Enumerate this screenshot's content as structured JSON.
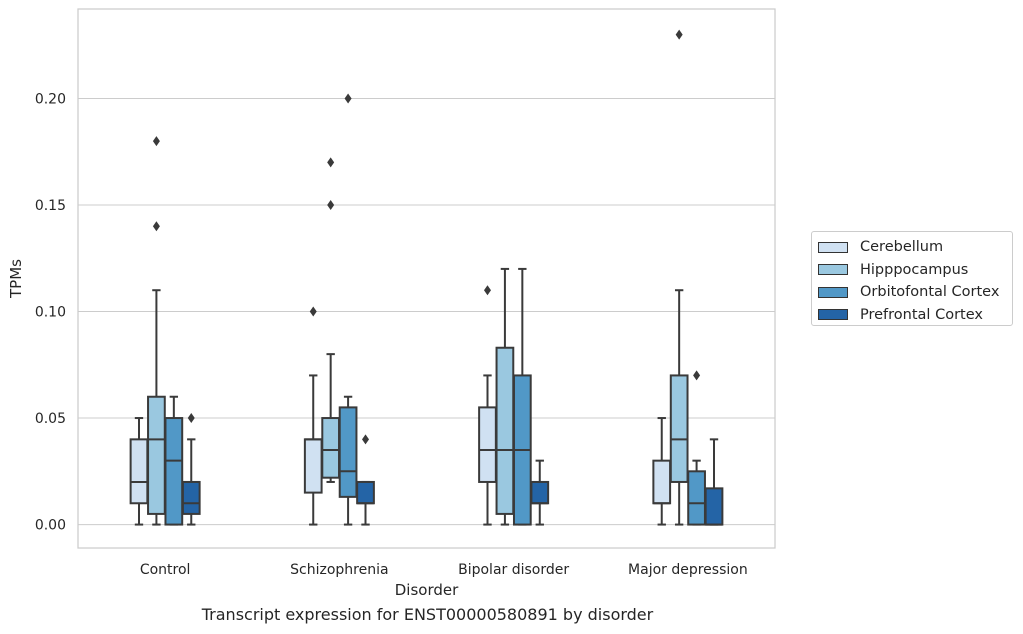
{
  "chart_data": {
    "type": "box",
    "xlabel": "Disorder",
    "ylabel": "TPMs",
    "caption": "Transcript expression for ENST00000580891 by disorder",
    "categories": [
      "Control",
      "Schizophrenia",
      "Bipolar disorder",
      "Major depression"
    ],
    "ylim": [
      -0.011,
      0.242
    ],
    "yticks": [
      0.0,
      0.05,
      0.1,
      0.15,
      0.2
    ],
    "ytick_labels": [
      "0.00",
      "0.05",
      "0.10",
      "0.15",
      "0.20"
    ],
    "grid": "horizontal",
    "legend_position": "right",
    "series": [
      {
        "name": "Cerebellum",
        "color": "#d0e1f2",
        "boxes": [
          {
            "whislo": 0.0,
            "q1": 0.01,
            "med": 0.02,
            "q3": 0.04,
            "whishi": 0.05,
            "fliers": []
          },
          {
            "whislo": 0.0,
            "q1": 0.015,
            "med": 0.04,
            "q3": 0.04,
            "whishi": 0.07,
            "fliers": [
              0.1
            ]
          },
          {
            "whislo": 0.0,
            "q1": 0.02,
            "med": 0.035,
            "q3": 0.055,
            "whishi": 0.07,
            "fliers": [
              0.11
            ]
          },
          {
            "whislo": 0.0,
            "q1": 0.01,
            "med": 0.01,
            "q3": 0.03,
            "whishi": 0.05,
            "fliers": []
          }
        ]
      },
      {
        "name": "Hipppocampus",
        "color": "#9ac8e0",
        "boxes": [
          {
            "whislo": 0.0,
            "q1": 0.005,
            "med": 0.04,
            "q3": 0.06,
            "whishi": 0.11,
            "fliers": [
              0.14,
              0.18
            ]
          },
          {
            "whislo": 0.02,
            "q1": 0.022,
            "med": 0.035,
            "q3": 0.05,
            "whishi": 0.08,
            "fliers": [
              0.15,
              0.17
            ]
          },
          {
            "whislo": 0.0,
            "q1": 0.005,
            "med": 0.035,
            "q3": 0.083,
            "whishi": 0.12,
            "fliers": []
          },
          {
            "whislo": 0.0,
            "q1": 0.02,
            "med": 0.04,
            "q3": 0.07,
            "whishi": 0.11,
            "fliers": [
              0.23
            ]
          }
        ]
      },
      {
        "name": "Orbitofontal Cortex",
        "color": "#5198c7",
        "boxes": [
          {
            "whislo": 0.0,
            "q1": 0.0,
            "med": 0.03,
            "q3": 0.05,
            "whishi": 0.06,
            "fliers": []
          },
          {
            "whislo": 0.0,
            "q1": 0.013,
            "med": 0.025,
            "q3": 0.055,
            "whishi": 0.06,
            "fliers": [
              0.2
            ]
          },
          {
            "whislo": 0.0,
            "q1": 0.0,
            "med": 0.035,
            "q3": 0.07,
            "whishi": 0.12,
            "fliers": []
          },
          {
            "whislo": 0.0,
            "q1": 0.0,
            "med": 0.01,
            "q3": 0.025,
            "whishi": 0.03,
            "fliers": [
              0.07
            ]
          }
        ]
      },
      {
        "name": "Prefrontal Cortex",
        "color": "#2464a6",
        "boxes": [
          {
            "whislo": 0.0,
            "q1": 0.005,
            "med": 0.01,
            "q3": 0.02,
            "whishi": 0.04,
            "fliers": [
              0.05
            ]
          },
          {
            "whislo": 0.0,
            "q1": 0.01,
            "med": 0.01,
            "q3": 0.02,
            "whishi": 0.02,
            "fliers": [
              0.04
            ]
          },
          {
            "whislo": 0.0,
            "q1": 0.01,
            "med": 0.01,
            "q3": 0.02,
            "whishi": 0.03,
            "fliers": []
          },
          {
            "whislo": 0.0,
            "q1": 0.0,
            "med": 0.0,
            "q3": 0.017,
            "whishi": 0.04,
            "fliers": []
          }
        ]
      }
    ]
  }
}
